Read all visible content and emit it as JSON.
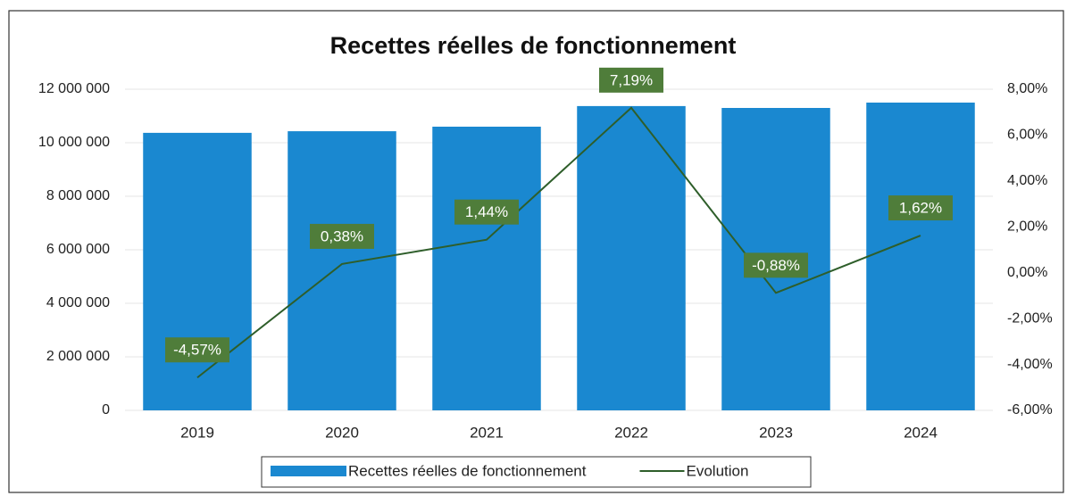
{
  "chart_data": {
    "type": "bar",
    "title": "Recettes réelles de fonctionnement",
    "categories": [
      "2019",
      "2020",
      "2021",
      "2022",
      "2023",
      "2024"
    ],
    "series": [
      {
        "name": "Recettes réelles de fonctionnement",
        "type": "bar",
        "color": "#1a88d0",
        "values": [
          10370000,
          10430000,
          10600000,
          11370000,
          11300000,
          11500000
        ]
      },
      {
        "name": "Evolution",
        "type": "line",
        "axis": "y2",
        "color": "#2e5e2a",
        "values": [
          -4.57,
          0.38,
          1.44,
          7.19,
          -0.88,
          1.62
        ],
        "value_labels": [
          "-4,57%",
          "0,38%",
          "1,44%",
          "7,19%",
          "-0,88%",
          "1,62%"
        ]
      }
    ],
    "ylim": [
      0,
      12000000
    ],
    "yticks": [
      {
        "value": 0,
        "label": "0"
      },
      {
        "value": 2000000,
        "label": "2 000 000"
      },
      {
        "value": 4000000,
        "label": "4 000 000"
      },
      {
        "value": 6000000,
        "label": "6 000 000"
      },
      {
        "value": 8000000,
        "label": "8 000 000"
      },
      {
        "value": 10000000,
        "label": "10 000 000"
      },
      {
        "value": 12000000,
        "label": "12 000 000"
      }
    ],
    "y2lim": [
      -6,
      8
    ],
    "y2ticks": [
      {
        "value": -6,
        "label": "-6,00%"
      },
      {
        "value": -4,
        "label": "-4,00%"
      },
      {
        "value": -2,
        "label": "-2,00%"
      },
      {
        "value": 0,
        "label": "0,00%"
      },
      {
        "value": 2,
        "label": "2,00%"
      },
      {
        "value": 4,
        "label": "4,00%"
      },
      {
        "value": 6,
        "label": "6,00%"
      },
      {
        "value": 8,
        "label": "8,00%"
      }
    ],
    "grid": true,
    "legend": "bottom"
  }
}
